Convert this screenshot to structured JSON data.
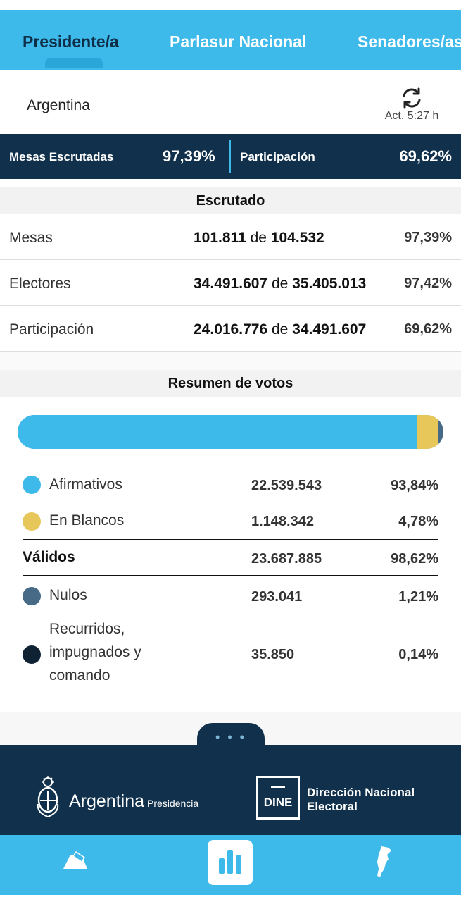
{
  "tabs": [
    {
      "label": "Presidente/a"
    },
    {
      "label": "Parlasur Nacional"
    },
    {
      "label": "Senadores/as"
    }
  ],
  "region": {
    "name": "Argentina",
    "updated": "Act. 5:27 h"
  },
  "stats": {
    "mesas_label": "Mesas Escrutadas",
    "mesas_value": "97,39%",
    "participacion_label": "Participación",
    "participacion_value": "69,62%"
  },
  "escrutado": {
    "title": "Escrutado",
    "de": "de",
    "rows": [
      {
        "name": "Mesas",
        "value": "101.811",
        "total": "104.532",
        "pct": "97,39%"
      },
      {
        "name": "Electores",
        "value": "34.491.607",
        "total": "35.405.013",
        "pct": "97,42%"
      },
      {
        "name": "Participación",
        "value": "24.016.776",
        "total": "34.491.607",
        "pct": "69,62%"
      }
    ]
  },
  "resumen": {
    "title": "Resumen de votos",
    "bar_shares": [
      {
        "name": "Afirmativos",
        "share": 0.9384,
        "color": "#3db9ea"
      },
      {
        "name": "En Blancos",
        "share": 0.0478,
        "color": "#e8c75a"
      },
      {
        "name": "Nulos",
        "share": 0.0121,
        "color": "#476a86"
      },
      {
        "name": "Recurridos",
        "share": 0.0014,
        "color": "#0f2233"
      }
    ],
    "rows": [
      {
        "name": "Afirmativos",
        "count": "22.539.543",
        "pct": "93,84%",
        "color": "#3db9ea"
      },
      {
        "name": "En Blancos",
        "count": "1.148.342",
        "pct": "4,78%",
        "color": "#e8c75a"
      },
      {
        "name": "Válidos",
        "count": "23.687.885",
        "pct": "98,62%"
      },
      {
        "name": "Nulos",
        "count": "293.041",
        "pct": "1,21%",
        "color": "#476a86"
      },
      {
        "name": "Recurridos,\nimpugnados y\ncomando",
        "count": "35.850",
        "pct": "0,14%",
        "color": "#0f2233"
      }
    ]
  },
  "more": "• • •",
  "footer": {
    "argentina": "Argentina",
    "presidencia": "Presidencia",
    "dine": "DINE",
    "dne_line1": "Dirección Nacional",
    "dne_line2": "Electoral"
  },
  "nav": {
    "items": [
      {
        "icon": "ballot-icon"
      },
      {
        "icon": "bar-chart-icon"
      },
      {
        "icon": "argentina-map-icon"
      }
    ]
  }
}
